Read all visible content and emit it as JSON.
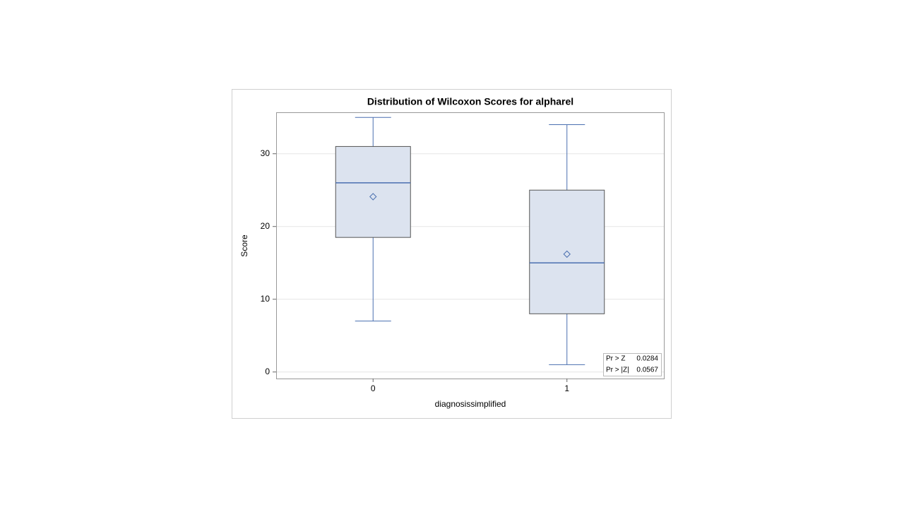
{
  "chart_data": {
    "type": "box",
    "title": "Distribution of Wilcoxon Scores for alpharel",
    "x_label": "diagnosissimplified",
    "y_label": "Score",
    "categories": [
      "0",
      "1"
    ],
    "boxes": [
      {
        "min": 7,
        "q1": 18.5,
        "median": 26,
        "q3": 31,
        "max": 35,
        "mean": 24.1
      },
      {
        "min": 1,
        "q1": 8,
        "median": 15,
        "q3": 25,
        "max": 34,
        "mean": 16.2
      }
    ],
    "color": "#4a6fb0",
    "box_fill": "#dce3ef",
    "ylim": [
      -0.9,
      35.7
    ],
    "yticks": [
      0,
      10,
      20,
      30
    ],
    "grid": true,
    "stats": [
      {
        "label": "Pr > Z",
        "value": 0.0284
      },
      {
        "label": "Pr > |Z|",
        "value": 0.0567
      }
    ]
  }
}
